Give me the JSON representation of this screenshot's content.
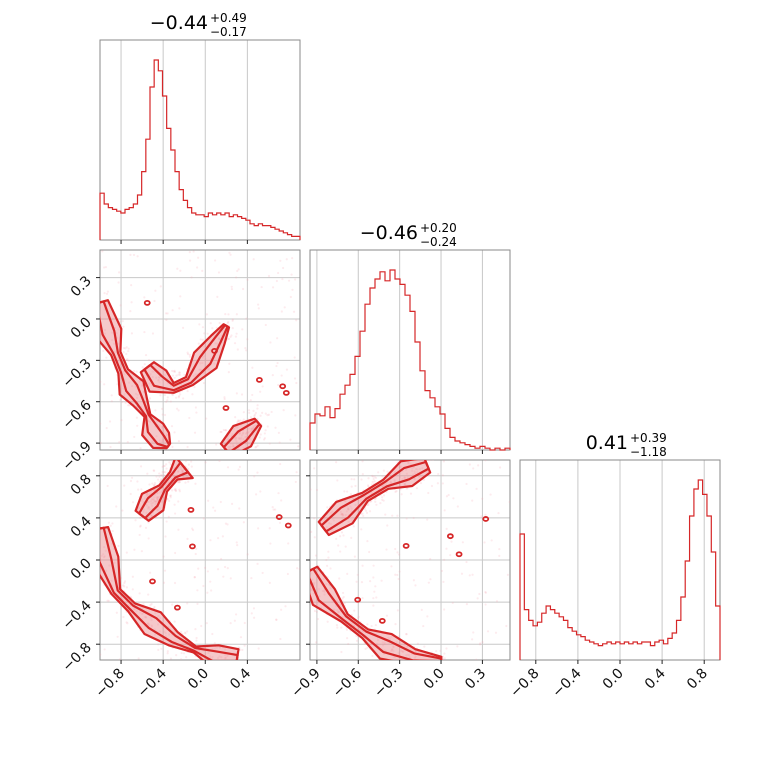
{
  "colors": {
    "main": "#d62728",
    "fill": "#e8868a",
    "scatter": "#f4a6b0"
  },
  "chart_data": {
    "type": "corner",
    "variables": [
      {
        "range": [
          -1.0,
          0.9
        ],
        "ticks": [
          -0.8,
          -0.4,
          0.0,
          0.4
        ],
        "tick_labels": [
          "−0.8",
          "−0.4",
          "0.0",
          "0.4"
        ],
        "title": {
          "median": "−0.44",
          "plus": "+0.49",
          "minus": "−0.17"
        }
      },
      {
        "range": [
          -0.95,
          0.5
        ],
        "ticks": [
          -0.9,
          -0.6,
          -0.3,
          0.0,
          0.3
        ],
        "tick_labels": [
          "−0.9",
          "−0.6",
          "−0.3",
          "0.0",
          "0.3"
        ],
        "title": {
          "median": "−0.46",
          "plus": "+0.20",
          "minus": "−0.24"
        }
      },
      {
        "range": [
          -0.95,
          0.95
        ],
        "ticks": [
          -0.8,
          -0.4,
          0.0,
          0.4,
          0.8
        ],
        "tick_labels": [
          "−0.8",
          "−0.4",
          "0.0",
          "0.4",
          "0.8"
        ],
        "title": {
          "median": "0.41",
          "plus": "+0.39",
          "minus": "−1.18"
        }
      }
    ],
    "histograms": [
      {
        "variable": 0,
        "bin_edges_range": [
          -1.0,
          0.9
        ],
        "counts": [
          26,
          20,
          18,
          17,
          16,
          15,
          17,
          18,
          20,
          25,
          38,
          56,
          85,
          100,
          94,
          80,
          62,
          50,
          38,
          28,
          22,
          18,
          15,
          14,
          14,
          13,
          15,
          14,
          15,
          14,
          15,
          13,
          14,
          13,
          12,
          11,
          9,
          8,
          9,
          8,
          8,
          7,
          6,
          5,
          4,
          3,
          2,
          2
        ]
      },
      {
        "variable": 1,
        "bin_edges_range": [
          -0.95,
          0.5
        ],
        "counts": [
          15,
          20,
          19,
          24,
          18,
          23,
          31,
          36,
          42,
          52,
          66,
          81,
          90,
          95,
          99,
          94,
          100,
          95,
          92,
          86,
          77,
          60,
          44,
          33,
          29,
          24,
          20,
          12,
          7,
          5,
          4,
          3,
          2,
          1,
          2,
          1,
          0,
          1,
          0,
          1
        ]
      },
      {
        "variable": 2,
        "bin_edges_range": [
          -0.95,
          0.95
        ],
        "counts": [
          70,
          28,
          22,
          19,
          21,
          26,
          30,
          28,
          26,
          24,
          22,
          18,
          16,
          14,
          13,
          11,
          10,
          9,
          8,
          9,
          10,
          9,
          10,
          9,
          10,
          9,
          10,
          9,
          10,
          10,
          8,
          10,
          11,
          9,
          12,
          15,
          22,
          35,
          55,
          80,
          95,
          100,
          92,
          80,
          60,
          30
        ]
      }
    ],
    "pairs": [
      {
        "x": 0,
        "y": 1,
        "kind": "2d-density",
        "high_density_path": [
          [
            -1.0,
            0.12
          ],
          [
            -0.92,
            -0.1
          ],
          [
            -0.85,
            -0.25
          ],
          [
            -0.78,
            -0.38
          ],
          [
            -0.7,
            -0.5
          ],
          [
            -0.62,
            -0.6
          ],
          [
            -0.55,
            -0.7
          ],
          [
            -0.5,
            -0.8
          ],
          [
            -0.42,
            -0.88
          ],
          [
            -0.35,
            -0.92
          ]
        ],
        "branch_path": [
          [
            -0.55,
            -0.35
          ],
          [
            -0.45,
            -0.45
          ],
          [
            -0.3,
            -0.5
          ],
          [
            -0.15,
            -0.45
          ],
          [
            0.0,
            -0.3
          ],
          [
            0.12,
            -0.15
          ],
          [
            0.2,
            -0.05
          ]
        ],
        "lower_right_path": [
          [
            0.2,
            -0.95
          ],
          [
            0.35,
            -0.85
          ],
          [
            0.5,
            -0.75
          ]
        ]
      },
      {
        "x": 0,
        "y": 2,
        "kind": "2d-density",
        "upper_arc": [
          [
            -0.6,
            0.42
          ],
          [
            -0.5,
            0.55
          ],
          [
            -0.4,
            0.68
          ],
          [
            -0.3,
            0.8
          ],
          [
            -0.2,
            0.88
          ]
        ],
        "lower_arc": [
          [
            -1.0,
            0.3
          ],
          [
            -0.95,
            0.0
          ],
          [
            -0.85,
            -0.3
          ],
          [
            -0.7,
            -0.45
          ],
          [
            -0.5,
            -0.6
          ],
          [
            -0.3,
            -0.75
          ],
          [
            -0.1,
            -0.85
          ],
          [
            0.1,
            -0.92
          ],
          [
            0.3,
            -0.95
          ]
        ]
      },
      {
        "x": 1,
        "y": 2,
        "kind": "2d-density",
        "upper_arc": [
          [
            -0.85,
            0.3
          ],
          [
            -0.7,
            0.45
          ],
          [
            -0.55,
            0.6
          ],
          [
            -0.4,
            0.72
          ],
          [
            -0.25,
            0.82
          ],
          [
            -0.1,
            0.9
          ]
        ],
        "lower_arc": [
          [
            -0.95,
            -0.1
          ],
          [
            -0.85,
            -0.35
          ],
          [
            -0.7,
            -0.55
          ],
          [
            -0.55,
            -0.7
          ],
          [
            -0.4,
            -0.82
          ],
          [
            -0.2,
            -0.92
          ],
          [
            0.0,
            -0.95
          ]
        ]
      }
    ]
  }
}
